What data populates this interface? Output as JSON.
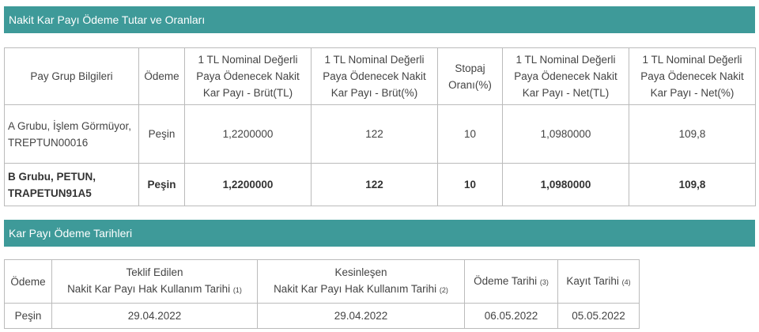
{
  "section1": {
    "title": "Nakit Kar Payı Ödeme Tutar ve Oranları",
    "headers": [
      "Pay Grup Bilgileri",
      "Ödeme",
      "1 TL Nominal Değerli Paya Ödenecek Nakit Kar Payı - Brüt(TL)",
      "1 TL Nominal Değerli Paya Ödenecek Nakit Kar Payı - Brüt(%)",
      "Stopaj Oranı(%)",
      "1 TL Nominal Değerli Paya Ödenecek Nakit Kar Payı - Net(TL)",
      "1 TL Nominal Değerli Paya Ödenecek Nakit Kar Payı - Net(%)"
    ],
    "rows": [
      [
        "A Grubu, İşlem Görmüyor, TREPTUN00016",
        "Peşin",
        "1,2200000",
        "122",
        "10",
        "1,0980000",
        "109,8"
      ],
      [
        "B Grubu, PETUN, TRAPETUN91A5",
        "Peşin",
        "1,2200000",
        "122",
        "10",
        "1,0980000",
        "109,8"
      ]
    ]
  },
  "section2": {
    "title": "Kar Payı Ödeme Tarihleri",
    "headers": [
      {
        "line1": "Ödeme",
        "line2": "",
        "sub": ""
      },
      {
        "line1": "Teklif Edilen",
        "line2": "Nakit Kar Payı Hak Kullanım Tarihi",
        "sub": "(1)"
      },
      {
        "line1": "Kesinleşen",
        "line2": "Nakit Kar Payı Hak Kullanım Tarihi",
        "sub": "(2)"
      },
      {
        "line1": "Ödeme Tarihi",
        "line2": "",
        "sub": "(3)"
      },
      {
        "line1": "Kayıt Tarihi",
        "line2": "",
        "sub": "(4)"
      }
    ],
    "rows": [
      [
        "Peşin",
        "29.04.2022",
        "29.04.2022",
        "06.05.2022",
        "05.05.2022"
      ]
    ]
  },
  "colors": {
    "header_bar": "#3e9a99"
  }
}
